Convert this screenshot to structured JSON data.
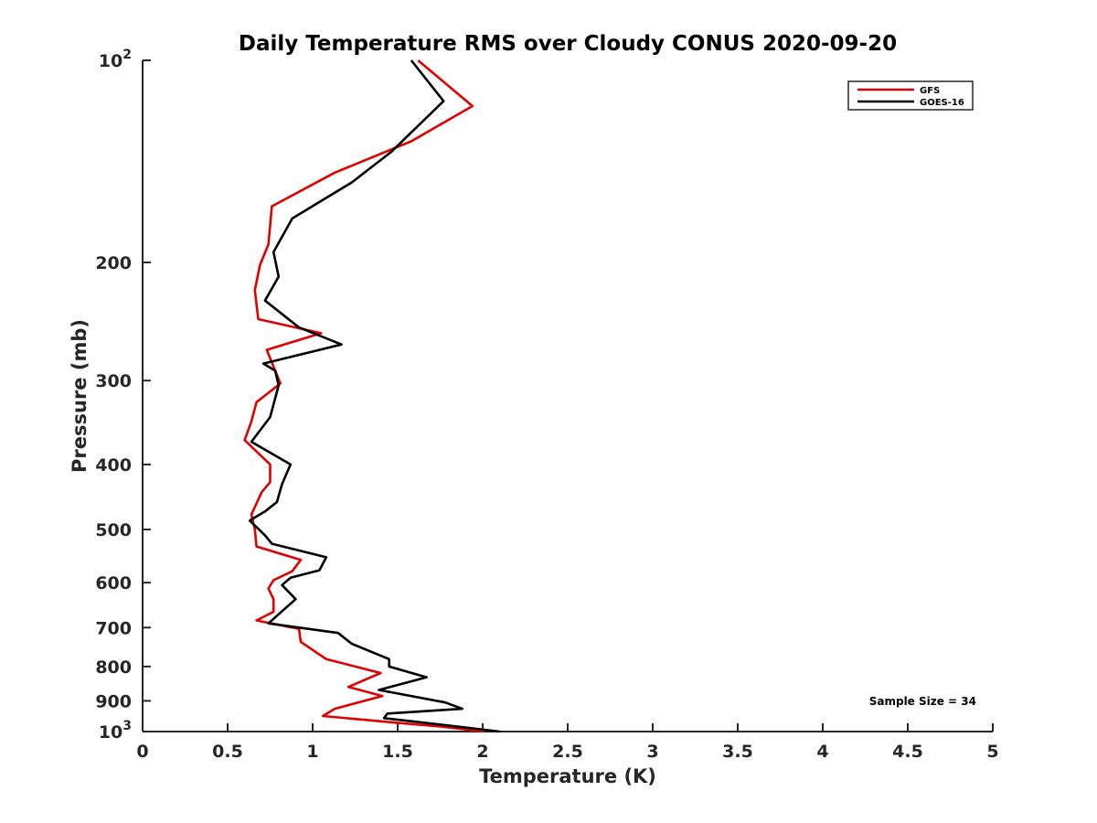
{
  "chart_data": {
    "type": "line",
    "title": "Daily Temperature RMS over Cloudy CONUS 2020-09-20",
    "xlabel": "Temperature (K)",
    "ylabel": "Pressure (mb)",
    "xlim": [
      0,
      5
    ],
    "ylim": [
      100,
      1000
    ],
    "y_scale": "log",
    "y_reversed": true,
    "x_ticks": [
      0,
      0.5,
      1,
      1.5,
      2,
      2.5,
      3,
      3.5,
      4,
      4.5,
      5
    ],
    "x_tick_labels": [
      "0",
      "0.5",
      "1",
      "1.5",
      "2",
      "2.5",
      "3",
      "3.5",
      "4",
      "4.5",
      "5"
    ],
    "y_ticks": [
      100,
      200,
      300,
      400,
      500,
      600,
      700,
      800,
      900,
      1000
    ],
    "y_tick_labels": [
      {
        "base": "10",
        "exp": "2"
      },
      {
        "base": "200",
        "exp": ""
      },
      {
        "base": "300",
        "exp": ""
      },
      {
        "base": "400",
        "exp": ""
      },
      {
        "base": "500",
        "exp": ""
      },
      {
        "base": "600",
        "exp": ""
      },
      {
        "base": "700",
        "exp": ""
      },
      {
        "base": "800",
        "exp": ""
      },
      {
        "base": "900",
        "exp": ""
      },
      {
        "base": "10",
        "exp": "3"
      }
    ],
    "grid": false,
    "legend_position": "top-right",
    "annotation": "Sample Size = 34",
    "series": [
      {
        "name": "GFS",
        "color": "#e00000",
        "points": [
          [
            1.62,
            100
          ],
          [
            1.94,
            117
          ],
          [
            1.58,
            132
          ],
          [
            1.13,
            147
          ],
          [
            0.76,
            165
          ],
          [
            0.74,
            188
          ],
          [
            0.69,
            202
          ],
          [
            0.66,
            220
          ],
          [
            0.68,
            243
          ],
          [
            1.05,
            255
          ],
          [
            0.73,
            270
          ],
          [
            0.81,
            303
          ],
          [
            0.67,
            323
          ],
          [
            0.64,
            345
          ],
          [
            0.6,
            368
          ],
          [
            0.75,
            400
          ],
          [
            0.75,
            425
          ],
          [
            0.7,
            440
          ],
          [
            0.64,
            475
          ],
          [
            0.66,
            500
          ],
          [
            0.67,
            530
          ],
          [
            0.93,
            555
          ],
          [
            0.88,
            577
          ],
          [
            0.77,
            595
          ],
          [
            0.74,
            612
          ],
          [
            0.77,
            635
          ],
          [
            0.77,
            663
          ],
          [
            0.67,
            683
          ],
          [
            0.92,
            703
          ],
          [
            0.93,
            735
          ],
          [
            1.08,
            780
          ],
          [
            1.4,
            818
          ],
          [
            1.21,
            858
          ],
          [
            1.41,
            885
          ],
          [
            1.13,
            925
          ],
          [
            1.06,
            948
          ],
          [
            1.49,
            970
          ],
          [
            1.75,
            983
          ],
          [
            2.01,
            1000
          ]
        ]
      },
      {
        "name": "GOES-16",
        "color": "#000000",
        "points": [
          [
            1.58,
            100
          ],
          [
            1.77,
            115
          ],
          [
            1.46,
            137
          ],
          [
            1.23,
            152
          ],
          [
            0.88,
            172
          ],
          [
            0.77,
            193
          ],
          [
            0.8,
            210
          ],
          [
            0.72,
            228
          ],
          [
            0.92,
            250
          ],
          [
            1.17,
            265
          ],
          [
            0.71,
            283
          ],
          [
            0.78,
            290
          ],
          [
            0.8,
            305
          ],
          [
            0.75,
            340
          ],
          [
            0.64,
            370
          ],
          [
            0.87,
            400
          ],
          [
            0.82,
            428
          ],
          [
            0.79,
            455
          ],
          [
            0.72,
            470
          ],
          [
            0.63,
            485
          ],
          [
            0.72,
            510
          ],
          [
            0.76,
            525
          ],
          [
            1.08,
            550
          ],
          [
            1.04,
            575
          ],
          [
            0.87,
            590
          ],
          [
            0.82,
            605
          ],
          [
            0.9,
            635
          ],
          [
            0.74,
            690
          ],
          [
            1.15,
            713
          ],
          [
            1.23,
            740
          ],
          [
            1.45,
            780
          ],
          [
            1.45,
            800
          ],
          [
            1.67,
            830
          ],
          [
            1.39,
            867
          ],
          [
            1.78,
            905
          ],
          [
            1.88,
            925
          ],
          [
            1.44,
            940
          ],
          [
            1.42,
            955
          ],
          [
            1.73,
            975
          ],
          [
            2.1,
            1000
          ]
        ]
      }
    ]
  }
}
